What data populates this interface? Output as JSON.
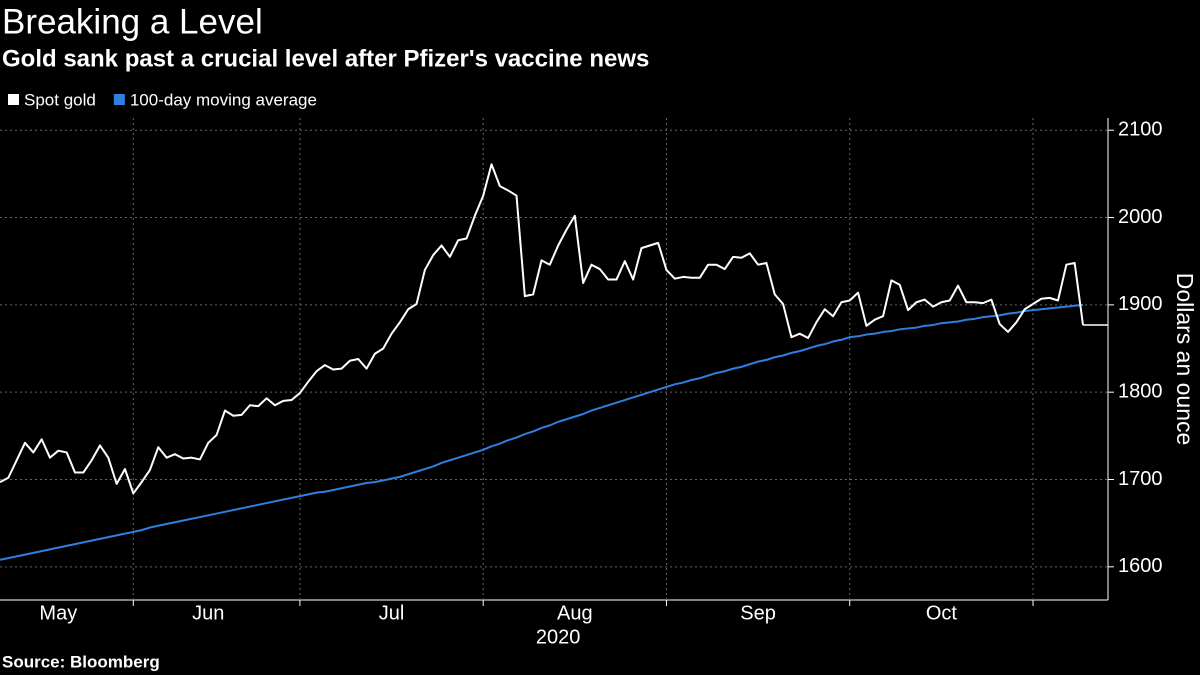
{
  "chart_data": {
    "type": "line",
    "title": "Breaking a Level",
    "subtitle": "Gold sank past a crucial level after Pfizer's vaccine news",
    "source": "Source: Bloomberg",
    "ylabel": "Dollars an ounce",
    "xlabel": "2020",
    "grid": true,
    "legend": "top-left",
    "ylim": [
      1562,
      2114
    ],
    "yticks": [
      1600,
      1700,
      1800,
      1900,
      2000,
      2100
    ],
    "categories": [
      null,
      null,
      null,
      null,
      null,
      null,
      null,
      "May",
      null,
      null,
      null,
      null,
      null,
      null,
      null,
      null,
      null,
      null,
      null,
      null,
      null,
      null,
      null,
      null,
      null,
      "Jun",
      null,
      null,
      null,
      null,
      null,
      null,
      null,
      null,
      null,
      null,
      null,
      null,
      null,
      null,
      null,
      null,
      null,
      null,
      null,
      null,
      null,
      "Jul",
      null,
      null,
      null,
      null,
      null,
      null,
      null,
      null,
      null,
      null,
      null,
      null,
      null,
      null,
      null,
      null,
      null,
      null,
      null,
      null,
      null,
      "Aug",
      null,
      null,
      null,
      null,
      null,
      null,
      null,
      null,
      null,
      null,
      null,
      null,
      null,
      null,
      null,
      null,
      null,
      null,
      null,
      null,
      null,
      "Sep",
      null,
      null,
      null,
      null,
      null,
      null,
      null,
      null,
      null,
      null,
      null,
      null,
      null,
      null,
      null,
      null,
      null,
      null,
      null,
      null,
      null,
      "Oct",
      null,
      null,
      null,
      null,
      null,
      null,
      null,
      null,
      null,
      null,
      null,
      null,
      null,
      null,
      null,
      null,
      null
    ],
    "series": [
      {
        "name": "Spot gold",
        "color": "#ffffff",
        "values": [
          1697,
          1702,
          1722,
          1742,
          1731,
          1746,
          1725,
          1733,
          1731,
          1708,
          1708,
          1722,
          1739,
          1725,
          1695,
          1712,
          1684,
          1697,
          1711,
          1737,
          1725,
          1729,
          1724,
          1725,
          1723,
          1742,
          1751,
          1779,
          1773,
          1774,
          1785,
          1784,
          1793,
          1785,
          1790,
          1791,
          1799,
          1812,
          1824,
          1831,
          1826,
          1827,
          1836,
          1838,
          1827,
          1844,
          1850,
          1867,
          1880,
          1895,
          1901,
          1940,
          1957,
          1968,
          1955,
          1974,
          1976,
          2002,
          2025,
          2061,
          2036,
          2031,
          2025,
          1910,
          1912,
          1951,
          1946,
          1968,
          1986,
          2002,
          1925,
          1946,
          1941,
          1929,
          1929,
          1950,
          1929,
          1965,
          1968,
          1971,
          1940,
          1930,
          1932,
          1931,
          1931,
          1946,
          1946,
          1941,
          1955,
          1954,
          1959,
          1946,
          1948,
          1912,
          1901,
          1863,
          1867,
          1862,
          1880,
          1895,
          1887,
          1903,
          1905,
          1914,
          1876,
          1883,
          1887,
          1928,
          1923,
          1894,
          1903,
          1906,
          1898,
          1903,
          1905,
          1922,
          1903,
          1903,
          1902,
          1906,
          1878,
          1869,
          1880,
          1895,
          1901,
          1907,
          1908,
          1905,
          1946,
          1948,
          1877
        ]
      },
      {
        "name": "100-day moving average",
        "color": "#2f7fe0",
        "values": [
          1608,
          1610,
          1612,
          1614,
          1616,
          1618,
          1620,
          1622,
          1624,
          1626,
          1628,
          1630,
          1632,
          1634,
          1636,
          1638,
          1640,
          1642,
          1645,
          1647,
          1649,
          1651,
          1653,
          1655,
          1657,
          1659,
          1661,
          1663,
          1665,
          1667,
          1669,
          1671,
          1673,
          1675,
          1677,
          1679,
          1681,
          1683,
          1685,
          1686,
          1688,
          1690,
          1692,
          1694,
          1696,
          1697,
          1699,
          1701,
          1703,
          1706,
          1709,
          1712,
          1715,
          1719,
          1722,
          1725,
          1728,
          1731,
          1734,
          1738,
          1741,
          1745,
          1748,
          1752,
          1755,
          1759,
          1762,
          1766,
          1769,
          1772,
          1775,
          1779,
          1782,
          1785,
          1788,
          1791,
          1794,
          1797,
          1800,
          1803,
          1806,
          1809,
          1811,
          1814,
          1816,
          1819,
          1822,
          1824,
          1827,
          1829,
          1832,
          1835,
          1837,
          1840,
          1842,
          1845,
          1847,
          1850,
          1853,
          1855,
          1858,
          1860,
          1863,
          1864,
          1866,
          1867,
          1869,
          1870,
          1872,
          1873,
          1874,
          1876,
          1877,
          1879,
          1880,
          1881,
          1883,
          1884,
          1886,
          1887,
          1888,
          1890,
          1891,
          1893,
          1894,
          1895,
          1896,
          1897,
          1898,
          1899,
          1900
        ]
      }
    ]
  }
}
